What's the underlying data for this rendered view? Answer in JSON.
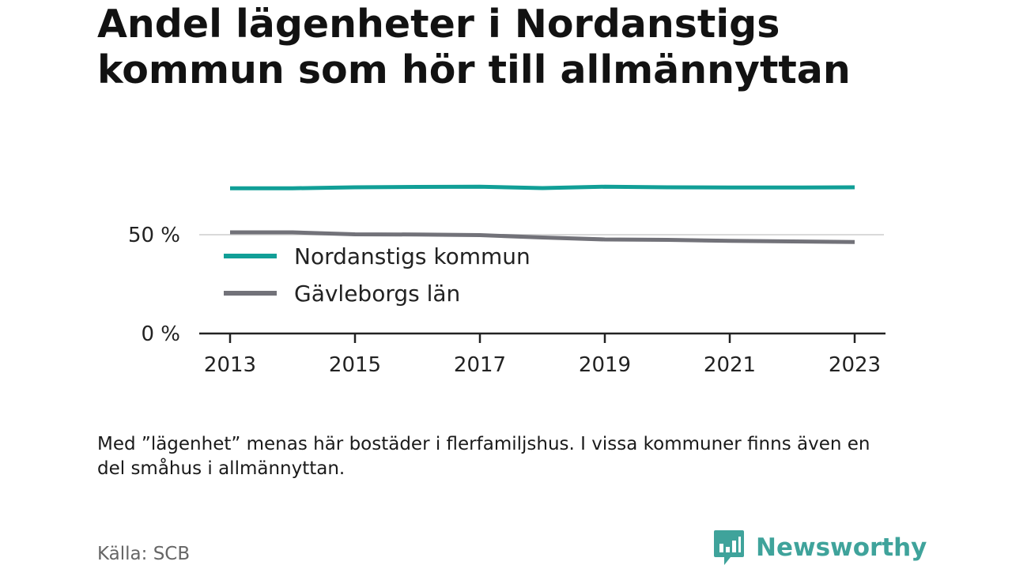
{
  "title": "Andel lägenheter i Nordanstigs kommun som hör till allmännyttan",
  "note": "Med ”lägenhet” menas här bostäder i flerfamiljshus. I vissa kommuner finns även en del småhus i allmännyttan.",
  "source": "Källa: SCB",
  "brand": {
    "name": "Newsworthy",
    "logo_icon": "bar-chart-speech-bubble-icon",
    "color": "#3fa39b"
  },
  "chart_data": {
    "type": "line",
    "x": [
      2013,
      2014,
      2015,
      2016,
      2017,
      2018,
      2019,
      2020,
      2021,
      2022,
      2023
    ],
    "xticks": [
      "2013",
      "2015",
      "2017",
      "2019",
      "2021",
      "2023"
    ],
    "yticks": [
      "0 %",
      "50 %"
    ],
    "ylim": [
      0,
      100
    ],
    "grid": true,
    "legend_placement": "inside, lower-left",
    "series": [
      {
        "name": "Nordanstigs kommun",
        "color": "#119f97",
        "values": [
          73.5,
          73.5,
          74.0,
          74.2,
          74.3,
          73.6,
          74.3,
          74.0,
          73.9,
          73.9,
          74.0
        ]
      },
      {
        "name": "Gävleborgs län",
        "color": "#727279",
        "values": [
          51.2,
          51.2,
          50.2,
          50.1,
          49.8,
          48.6,
          47.6,
          47.4,
          46.9,
          46.6,
          46.3
        ]
      }
    ]
  }
}
